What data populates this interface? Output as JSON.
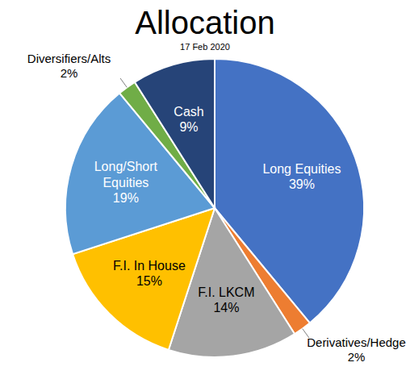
{
  "chart_data": {
    "type": "pie",
    "title": "Allocation",
    "subtitle": "17 Feb 2020",
    "categories": [
      "Long Equities",
      "Derivatives/Hedge",
      "F.I. LKCM",
      "F.I. In House",
      "Long/Short Equities",
      "Diversifiers/Alts",
      "Cash"
    ],
    "values": [
      39,
      2,
      14,
      15,
      19,
      2,
      9
    ],
    "value_labels": [
      "39%",
      "2%",
      "14%",
      "15%",
      "19%",
      "2%",
      "9%"
    ],
    "colors": [
      "#4472c4",
      "#ed7d31",
      "#a5a5a5",
      "#ffc000",
      "#5b9bd5",
      "#70ad47",
      "#264478"
    ],
    "data_labels": true
  }
}
